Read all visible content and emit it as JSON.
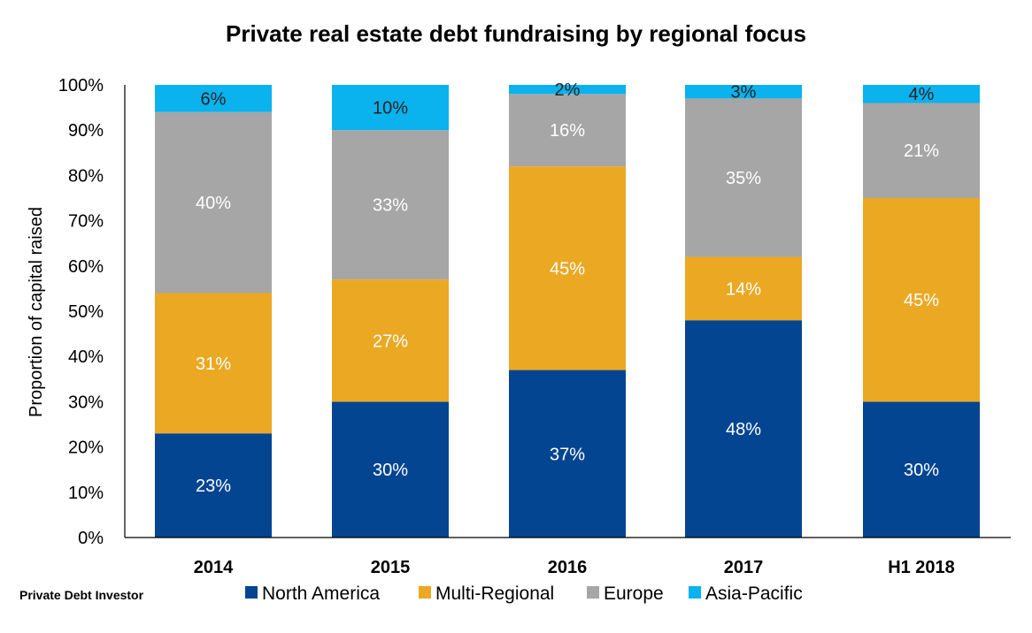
{
  "chart_data": {
    "type": "bar",
    "stacked": true,
    "title": "Private real estate debt fundraising by regional focus",
    "ylabel": "Proportion of capital raised",
    "xlabel": "",
    "ylim": [
      0,
      100
    ],
    "yticks": [
      "0%",
      "10%",
      "20%",
      "30%",
      "40%",
      "50%",
      "60%",
      "70%",
      "80%",
      "90%",
      "100%"
    ],
    "categories": [
      "2014",
      "2015",
      "2016",
      "2017",
      "H1 2018"
    ],
    "series": [
      {
        "name": "North America",
        "color": "#034591",
        "label_color": "#ffffff",
        "values": [
          23,
          30,
          37,
          48,
          30
        ],
        "labels": [
          "23%",
          "30%",
          "37%",
          "48%",
          "30%"
        ]
      },
      {
        "name": "Multi-Regional",
        "color": "#EBA823",
        "label_color": "#ffffff",
        "values": [
          31,
          27,
          45,
          14,
          45
        ],
        "labels": [
          "31%",
          "27%",
          "45%",
          "14%",
          "45%"
        ]
      },
      {
        "name": "Europe",
        "color": "#A6A6A6",
        "label_color": "#ffffff",
        "values": [
          40,
          33,
          16,
          35,
          21
        ],
        "labels": [
          "40%",
          "33%",
          "16%",
          "35%",
          "21%"
        ]
      },
      {
        "name": "Asia-Pacific",
        "color": "#0AB2EE",
        "label_color": "#222222",
        "values": [
          6,
          10,
          2,
          3,
          4
        ],
        "labels": [
          "6%",
          "10%",
          "2%",
          "3%",
          "4%"
        ]
      }
    ],
    "legend_position": "bottom",
    "grid": false
  },
  "source": "Private Debt Investor"
}
